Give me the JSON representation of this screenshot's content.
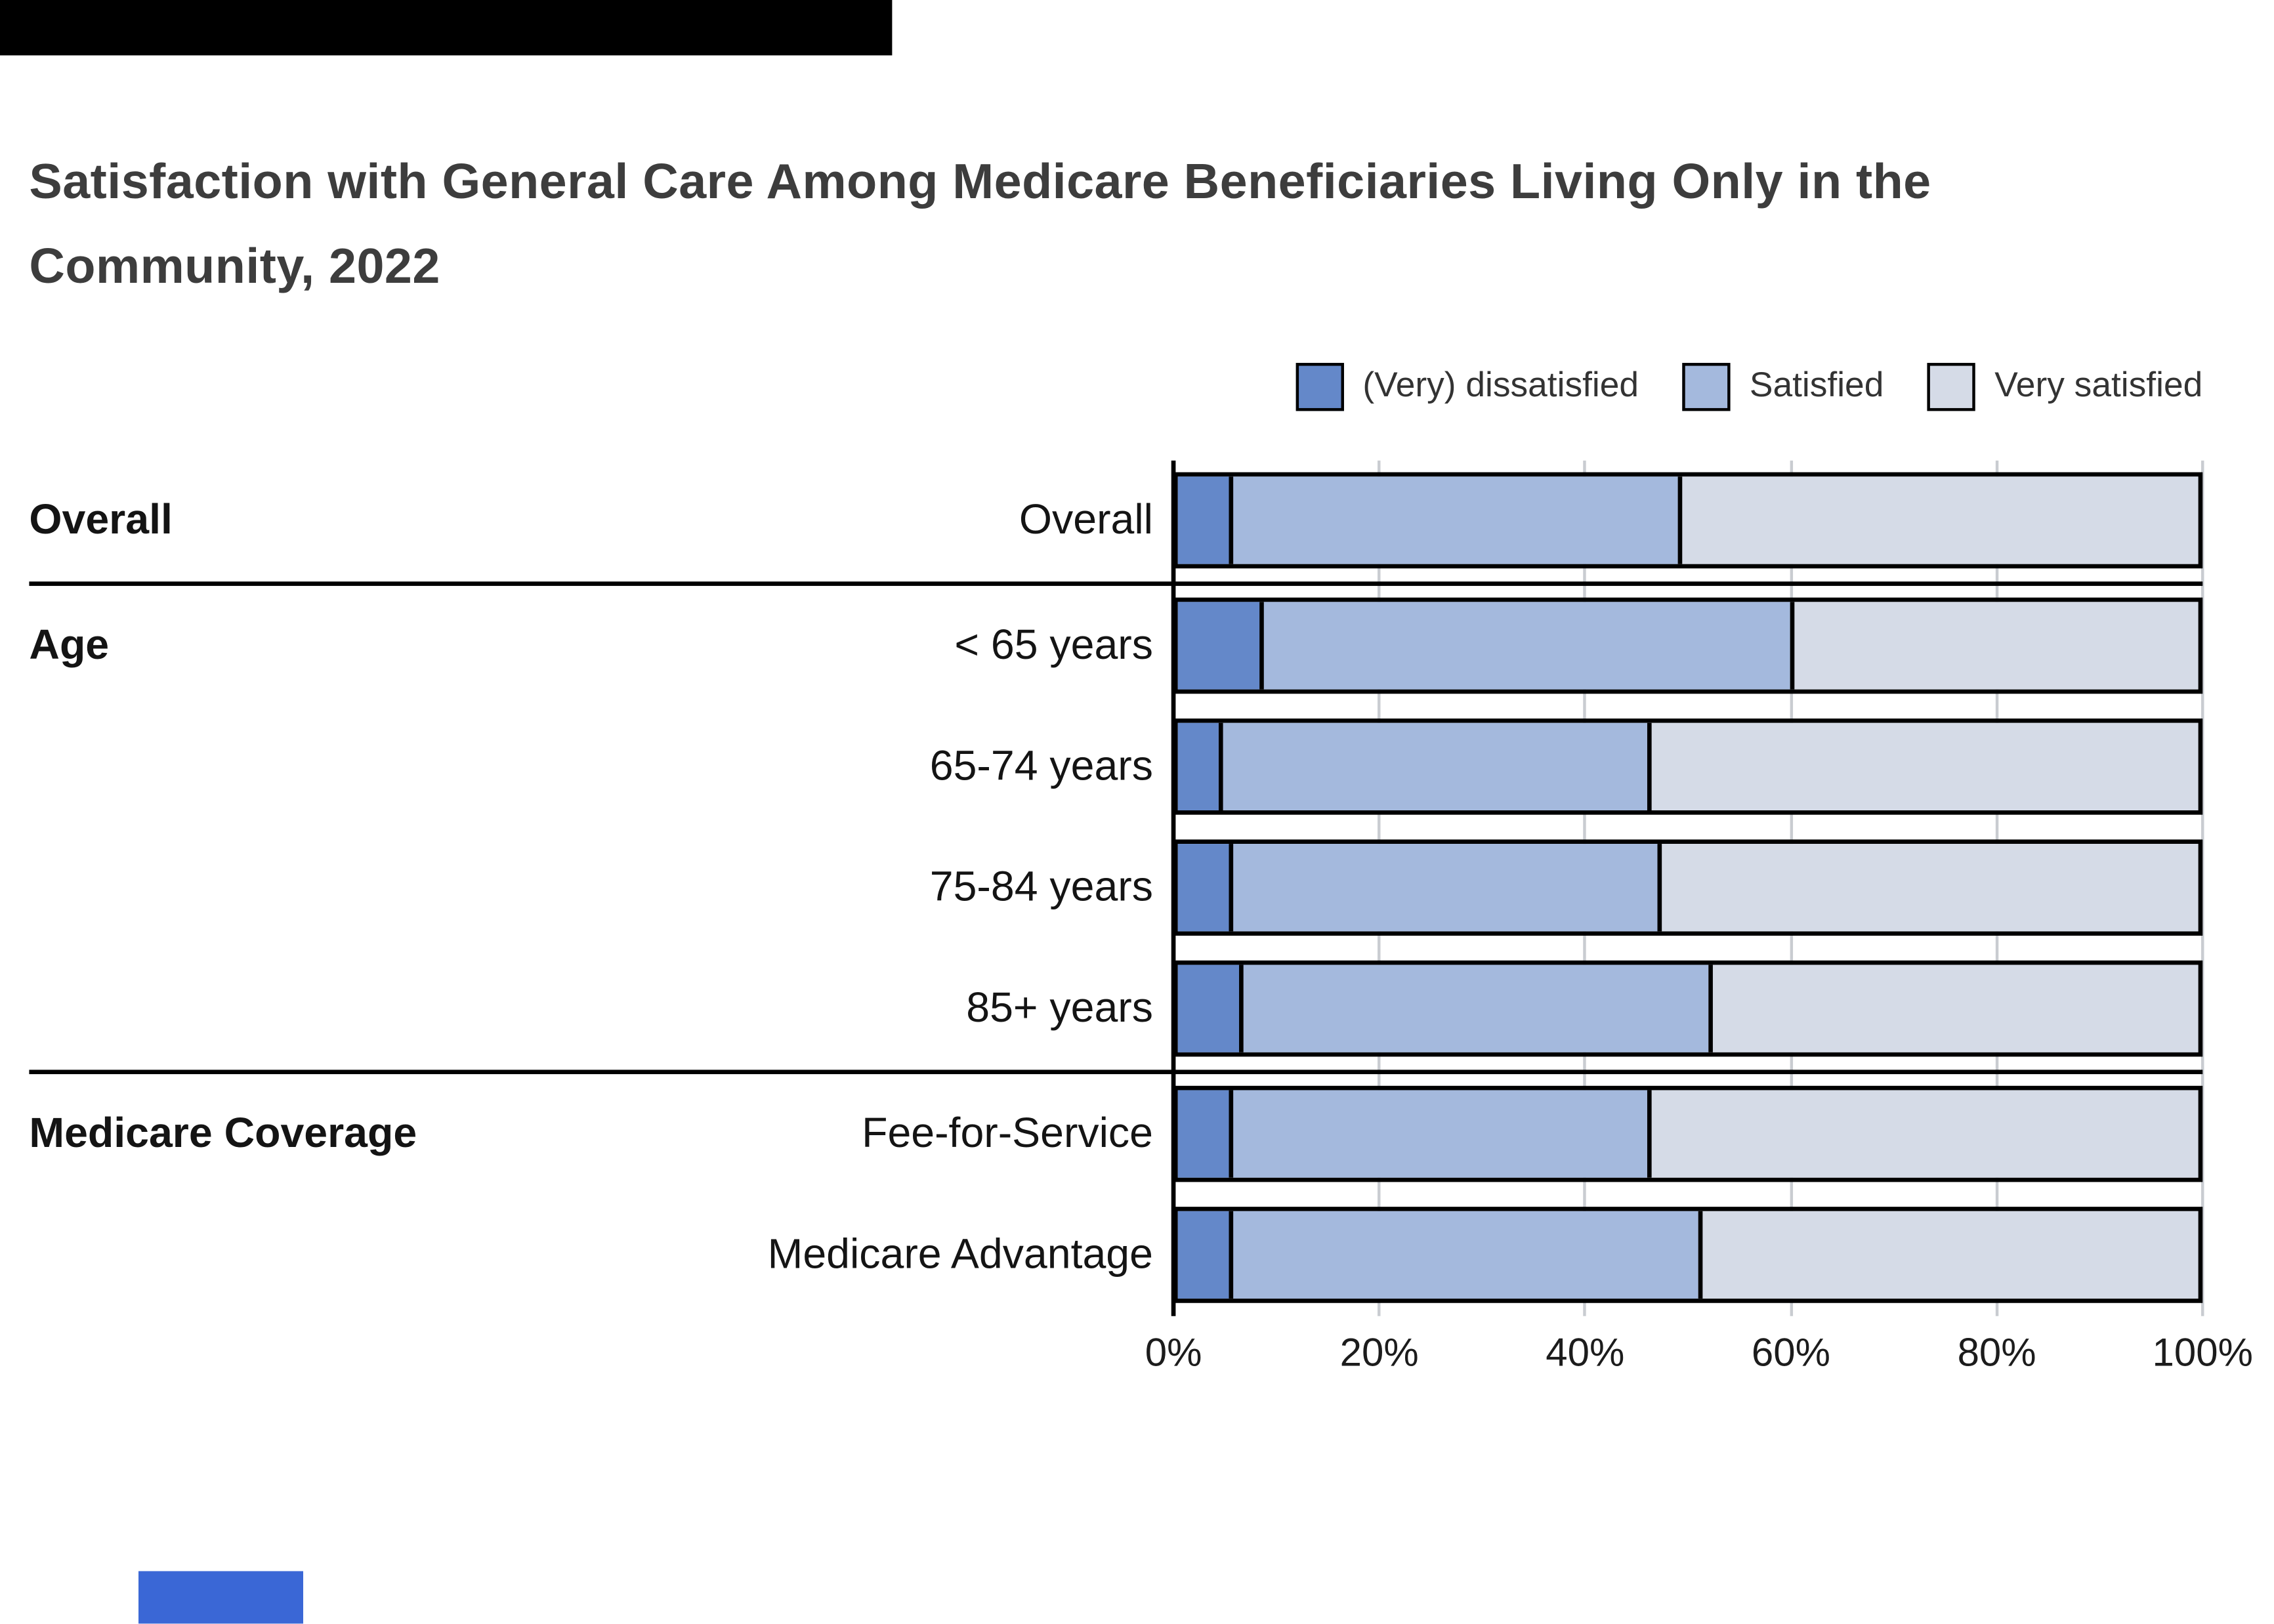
{
  "chart_data": {
    "type": "bar",
    "orientation": "horizontal",
    "stacked": true,
    "title": "Satisfaction with General Care Among Medicare Beneficiaries Living Only in the Community, 2022",
    "xlabel": "",
    "xlim": [
      0,
      100
    ],
    "x_ticks": [
      "0%",
      "20%",
      "40%",
      "60%",
      "80%",
      "100%"
    ],
    "grid": true,
    "legend_position": "top-right",
    "legend": [
      {
        "label": "(Very) dissatisfied",
        "color": "#6488c9"
      },
      {
        "label": "Satisfied",
        "color": "#a4b9dd"
      },
      {
        "label": "Very satisfied",
        "color": "#d5dbe7"
      }
    ],
    "series_names": [
      "(Very) dissatisfied",
      "Satisfied",
      "Very satisfied"
    ],
    "groups": [
      {
        "label": "Overall",
        "rows": [
          {
            "category": "Overall",
            "values": [
              5,
              44,
              51
            ]
          }
        ]
      },
      {
        "label": "Age",
        "rows": [
          {
            "category": "< 65 years",
            "values": [
              8,
              52,
              40
            ]
          },
          {
            "category": "65-74 years",
            "values": [
              4,
              42,
              54
            ]
          },
          {
            "category": "75-84 years",
            "values": [
              5,
              42,
              53
            ]
          },
          {
            "category": "85+ years",
            "values": [
              6,
              46,
              48
            ]
          }
        ]
      },
      {
        "label": "Medicare Coverage",
        "rows": [
          {
            "category": "Fee-for-Service",
            "values": [
              5,
              41,
              54
            ]
          },
          {
            "category": "Medicare Advantage",
            "values": [
              5,
              46,
              49
            ]
          }
        ]
      }
    ]
  },
  "artifacts": {
    "top_bar_color": "#000000",
    "bottom_rect_color": "#3a67d6"
  }
}
